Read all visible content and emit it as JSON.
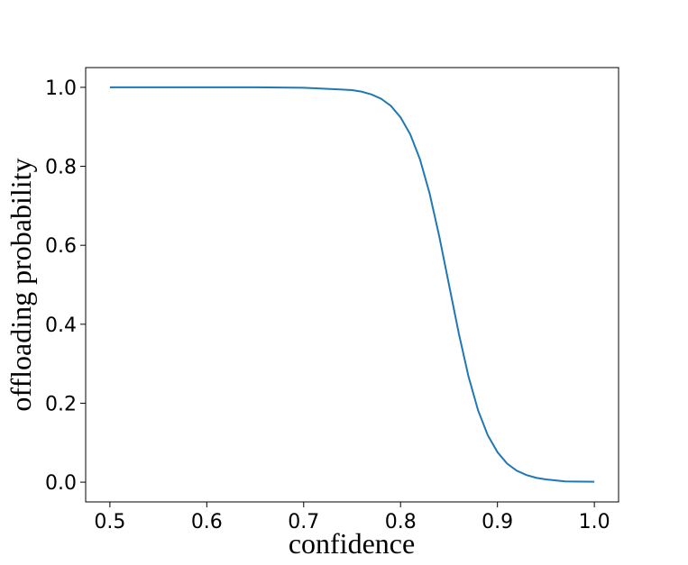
{
  "chart_data": {
    "type": "line",
    "xlabel": "confidence",
    "ylabel": "offloading probability",
    "x": [
      0.5,
      0.55,
      0.6,
      0.65,
      0.7,
      0.75,
      0.76,
      0.77,
      0.78,
      0.79,
      0.8,
      0.81,
      0.82,
      0.83,
      0.84,
      0.85,
      0.86,
      0.87,
      0.88,
      0.89,
      0.9,
      0.91,
      0.92,
      0.93,
      0.94,
      0.95,
      0.97,
      1.0
    ],
    "series": [
      {
        "color": "#1f77b4",
        "values": [
          1.0,
          1.0,
          1.0,
          1.0,
          0.999,
          0.993,
          0.989,
          0.982,
          0.971,
          0.953,
          0.924,
          0.881,
          0.818,
          0.731,
          0.622,
          0.5,
          0.378,
          0.269,
          0.182,
          0.119,
          0.076,
          0.047,
          0.029,
          0.018,
          0.011,
          0.007,
          0.002,
          0.001
        ]
      }
    ],
    "xlim": [
      0.475,
      1.025
    ],
    "ylim": [
      -0.05,
      1.05
    ],
    "xticks": [
      0.5,
      0.6,
      0.7,
      0.8,
      0.9,
      {
        "value": 1.0,
        "label": "1.0"
      }
    ],
    "yticks": [
      {
        "value": 0,
        "label": "0.0"
      },
      0.2,
      0.4,
      0.6,
      0.8,
      {
        "value": 1.0,
        "label": "1.0"
      }
    ],
    "grid": false
  }
}
